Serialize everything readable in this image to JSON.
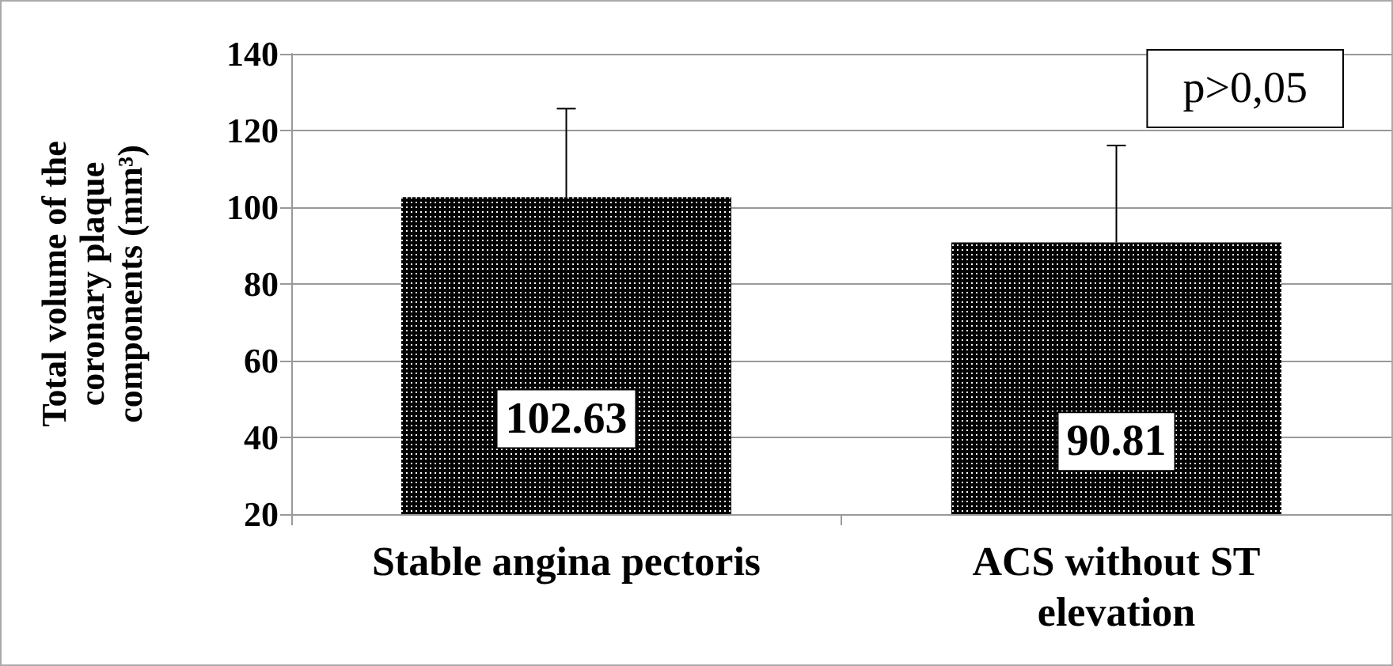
{
  "chart_data": {
    "type": "bar",
    "ylabel": "Total volume of the coronary plaque components (mm³)",
    "categories": [
      "Stable angina pectoris",
      "ACS without ST elevation"
    ],
    "values": [
      102.63,
      90.81
    ],
    "errors": [
      [
        102.63,
        125.7
      ],
      [
        90.81,
        116.1
      ]
    ],
    "color": "#000000",
    "ylim": [
      20,
      140
    ],
    "yticks": [
      20,
      40,
      60,
      80,
      100,
      120,
      140
    ],
    "grid": "y",
    "data_labels": true,
    "annotations": [
      "p>0,05"
    ]
  }
}
